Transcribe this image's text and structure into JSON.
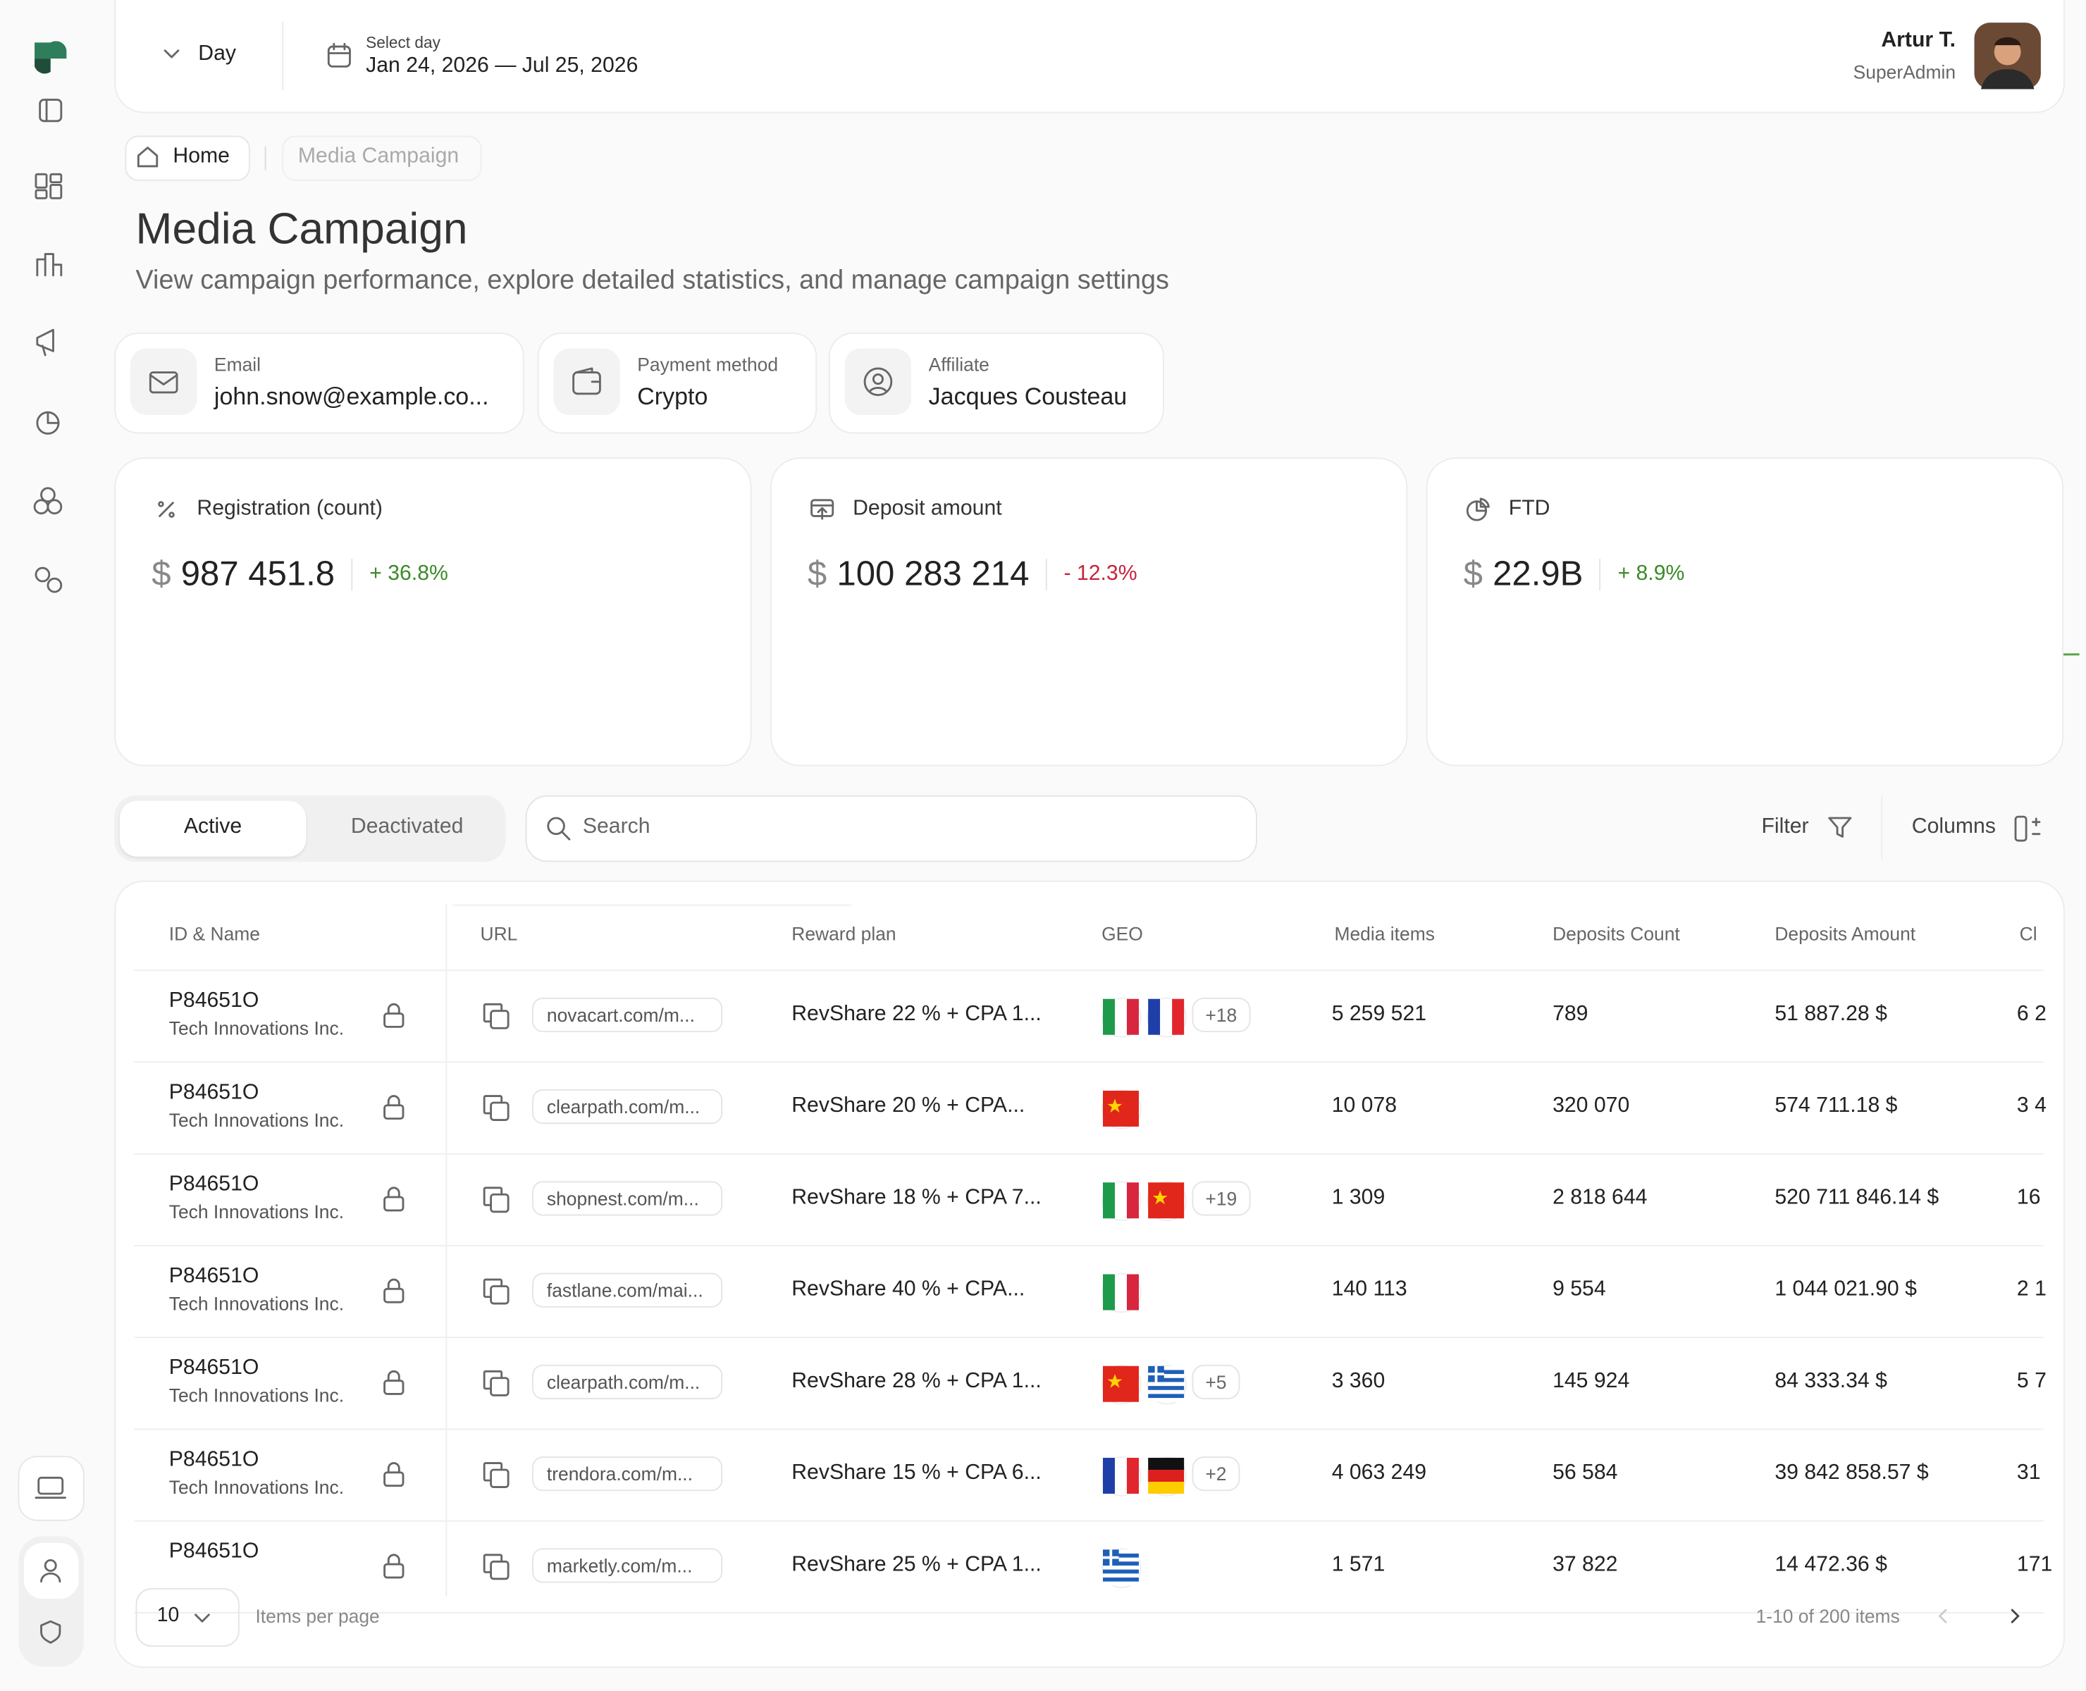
{
  "header": {
    "period": "Day",
    "date_label": "Select day",
    "date_range": "Jan 24, 2026 — Jul 25, 2026",
    "user_name": "Artur T.",
    "user_role": "SuperAdmin"
  },
  "breadcrumb": [
    "Home",
    "Media Campaign"
  ],
  "page": {
    "title": "Media Campaign",
    "subtitle": "View campaign performance, explore detailed statistics, and manage campaign settings"
  },
  "info_cards": [
    {
      "label": "Email",
      "value": "john.snow@example.co..."
    },
    {
      "label": "Payment method",
      "value": "Crypto"
    },
    {
      "label": "Affiliate",
      "value": "Jacques Cousteau"
    }
  ],
  "kpis": [
    {
      "label": "Registration (count)",
      "currency": "$",
      "value": "987 451.8",
      "change": "+ 36.8%",
      "trend": "up"
    },
    {
      "label": "Deposit amount",
      "currency": "$",
      "value": "100 283 214",
      "change": "- 12.3%",
      "trend": "down"
    },
    {
      "label": "FTD",
      "currency": "$",
      "value": "22.9B",
      "change": "+ 8.9%",
      "trend": "up"
    }
  ],
  "toolbar": {
    "tabs": [
      "Active",
      "Deactivated"
    ],
    "search": "Search",
    "filter": "Filter",
    "columns": "Columns"
  },
  "table": {
    "columns": [
      "ID & Name",
      "URL",
      "Reward plan",
      "GEO",
      "Media items",
      "Deposits Count",
      "Deposits Amount",
      "Cl"
    ],
    "rows": [
      {
        "id": "P84651O",
        "company": "Tech Innovations Inc.",
        "url": "novacart.com/m...",
        "reward": "RevShare 22 % + CPA 1...",
        "geo": [
          "it",
          "fr"
        ],
        "more": "+18",
        "media": "5 259 521",
        "dep_count": "789",
        "dep_amount": "51 887.28 $",
        "cl": "6 2"
      },
      {
        "id": "P84651O",
        "company": "Tech Innovations Inc.",
        "url": "clearpath.com/m...",
        "reward": "RevShare 20 % + CPA...",
        "geo": [
          "cn"
        ],
        "media": "10 078",
        "dep_count": "320 070",
        "dep_amount": "574 711.18 $",
        "cl": "3 4"
      },
      {
        "id": "P84651O",
        "company": "Tech Innovations Inc.",
        "url": "shopnest.com/m...",
        "reward": "RevShare 18 % + CPA 7...",
        "geo": [
          "it",
          "cn"
        ],
        "more": "+19",
        "media": "1 309",
        "dep_count": "2 818 644",
        "dep_amount": "520 711 846.14 $",
        "cl": "16"
      },
      {
        "id": "P84651O",
        "company": "Tech Innovations Inc.",
        "url": "fastlane.com/mai...",
        "reward": "RevShare 40 % + CPA...",
        "geo": [
          "it"
        ],
        "media": "140 113",
        "dep_count": "9 554",
        "dep_amount": "1 044 021.90 $",
        "cl": "2 1"
      },
      {
        "id": "P84651O",
        "company": "Tech Innovations Inc.",
        "url": "clearpath.com/m...",
        "reward": "RevShare 28 % + CPA 1...",
        "geo": [
          "cn",
          "gr"
        ],
        "more": "+5",
        "media": "3 360",
        "dep_count": "145 924",
        "dep_amount": "84 333.34 $",
        "cl": "5 7"
      },
      {
        "id": "P84651O",
        "company": "Tech Innovations Inc.",
        "url": "trendora.com/m...",
        "reward": "RevShare 15 % + CPA 6...",
        "geo": [
          "fr",
          "de"
        ],
        "more": "+2",
        "media": "4 063 249",
        "dep_count": "56 584",
        "dep_amount": "39 842 858.57 $",
        "cl": "31"
      },
      {
        "id": "P84651O",
        "url": "marketly.com/m...",
        "reward": "RevShare 25 % + CPA 1...",
        "geo": [
          "gr"
        ],
        "media": "1 571",
        "dep_count": "37 822",
        "dep_amount": "14 472.36 $",
        "cl": "171"
      }
    ]
  },
  "pagination": {
    "per_page": "10",
    "per_page_label": "Items per page",
    "range": "1-10 of 200 items"
  }
}
